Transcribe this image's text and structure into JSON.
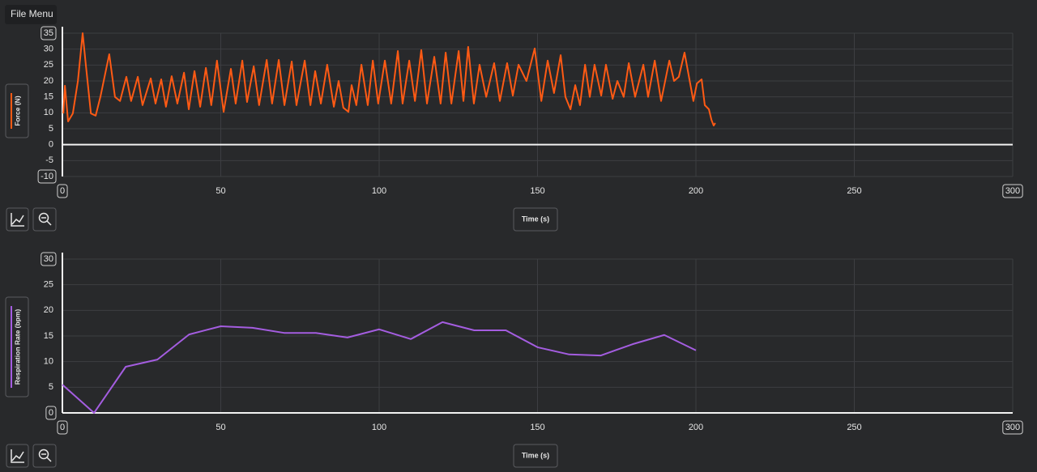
{
  "menu": "File Menu",
  "chart_data": [
    {
      "type": "line",
      "x_label": "Time (s)",
      "x": [
        0.3,
        0.8,
        1.8,
        3.3,
        4.9,
        6.4,
        7.4,
        9.0,
        10.5,
        12.0,
        14.8,
        16.6,
        18.2,
        20.2,
        21.7,
        23.8,
        25.3,
        27.9,
        29.4,
        31.2,
        32.7,
        34.5,
        36.3,
        38.4,
        39.9,
        41.7,
        43.5,
        45.3,
        47.0,
        48.8,
        50.9,
        53.2,
        54.7,
        56.8,
        58.3,
        60.4,
        62.1,
        64.5,
        66.2,
        68.3,
        70.1,
        72.4,
        73.9,
        76.5,
        78.3,
        79.8,
        81.6,
        83.6,
        85.7,
        87.2,
        88.7,
        90.3,
        91.3,
        92.8,
        94.4,
        96.4,
        98.0,
        99.7,
        101.8,
        103.8,
        105.9,
        107.4,
        109.5,
        111.3,
        113.3,
        115.1,
        117.4,
        119.4,
        121.0,
        122.8,
        125.1,
        126.6,
        128.1,
        129.9,
        131.7,
        133.8,
        136.3,
        138.1,
        140.4,
        142.2,
        144.0,
        146.5,
        149.1,
        151.2,
        153.2,
        155.2,
        157.3,
        158.8,
        160.4,
        161.9,
        163.4,
        165.0,
        166.5,
        168.0,
        170.1,
        171.6,
        173.7,
        175.2,
        177.2,
        178.8,
        180.8,
        183.4,
        184.9,
        187.0,
        189.0,
        191.6,
        193.1,
        194.6,
        196.4,
        199.2,
        200.3,
        201.8,
        202.8,
        204.1,
        204.9,
        205.6,
        206.1
      ],
      "series": [
        {
          "name": "Force (N)",
          "color": "#ff5a14",
          "values": [
            9.8,
            18.5,
            7.3,
            9.8,
            20.0,
            35.0,
            25.1,
            9.8,
            9.1,
            15.0,
            28.4,
            15.0,
            13.7,
            21.3,
            13.7,
            21.3,
            12.4,
            20.8,
            12.9,
            20.5,
            11.9,
            21.5,
            12.9,
            22.6,
            11.1,
            23.1,
            11.9,
            24.1,
            12.4,
            26.4,
            10.3,
            23.8,
            12.9,
            26.4,
            13.4,
            24.6,
            12.4,
            26.6,
            12.9,
            26.6,
            12.4,
            26.1,
            12.4,
            26.4,
            12.4,
            23.1,
            12.9,
            25.1,
            11.9,
            20.0,
            11.6,
            10.3,
            18.7,
            12.4,
            25.1,
            12.4,
            26.4,
            12.9,
            26.4,
            12.9,
            29.4,
            12.9,
            26.4,
            13.7,
            29.7,
            12.9,
            27.6,
            12.9,
            28.9,
            12.9,
            29.4,
            13.7,
            30.7,
            12.9,
            25.1,
            15.0,
            25.6,
            13.7,
            25.6,
            15.4,
            25.1,
            20.0,
            30.2,
            13.7,
            26.4,
            16.2,
            28.1,
            15.0,
            11.1,
            18.7,
            12.4,
            25.1,
            15.0,
            25.1,
            15.4,
            25.1,
            14.4,
            20.0,
            15.0,
            25.6,
            15.0,
            25.1,
            15.0,
            26.4,
            13.7,
            26.4,
            20.0,
            21.3,
            28.9,
            13.7,
            19.2,
            20.5,
            12.4,
            11.1,
            7.8,
            6.0,
            6.8
          ]
        }
      ],
      "xlim": [
        0,
        300
      ],
      "xticks": [
        0,
        50,
        100,
        150,
        200,
        250,
        300
      ],
      "ylim": [
        -10,
        35
      ],
      "yticks": [
        35,
        30,
        25,
        20,
        15,
        10,
        5,
        0,
        -5,
        -10
      ],
      "grid": true
    },
    {
      "type": "line",
      "x_label": "Time (s)",
      "x": [
        0,
        10,
        20,
        30,
        40,
        50,
        60,
        70,
        80,
        90,
        100,
        110,
        120,
        130,
        140,
        150,
        160,
        170,
        180,
        190,
        200
      ],
      "series": [
        {
          "name": "Respiration Rate (bpm)",
          "color": "#a45de0",
          "values": [
            5.5,
            0,
            9.0,
            10.4,
            15.3,
            16.9,
            16.6,
            15.6,
            15.6,
            14.7,
            16.3,
            14.4,
            17.7,
            16.1,
            16.1,
            12.8,
            11.4,
            11.2,
            13.4,
            15.2,
            12.2
          ]
        }
      ],
      "xlim": [
        0,
        300
      ],
      "xticks": [
        0,
        50,
        100,
        150,
        200,
        250,
        300
      ],
      "ylim": [
        0,
        30
      ],
      "yticks": [
        30,
        25,
        20,
        15,
        10,
        5,
        0
      ],
      "grid": true
    }
  ]
}
